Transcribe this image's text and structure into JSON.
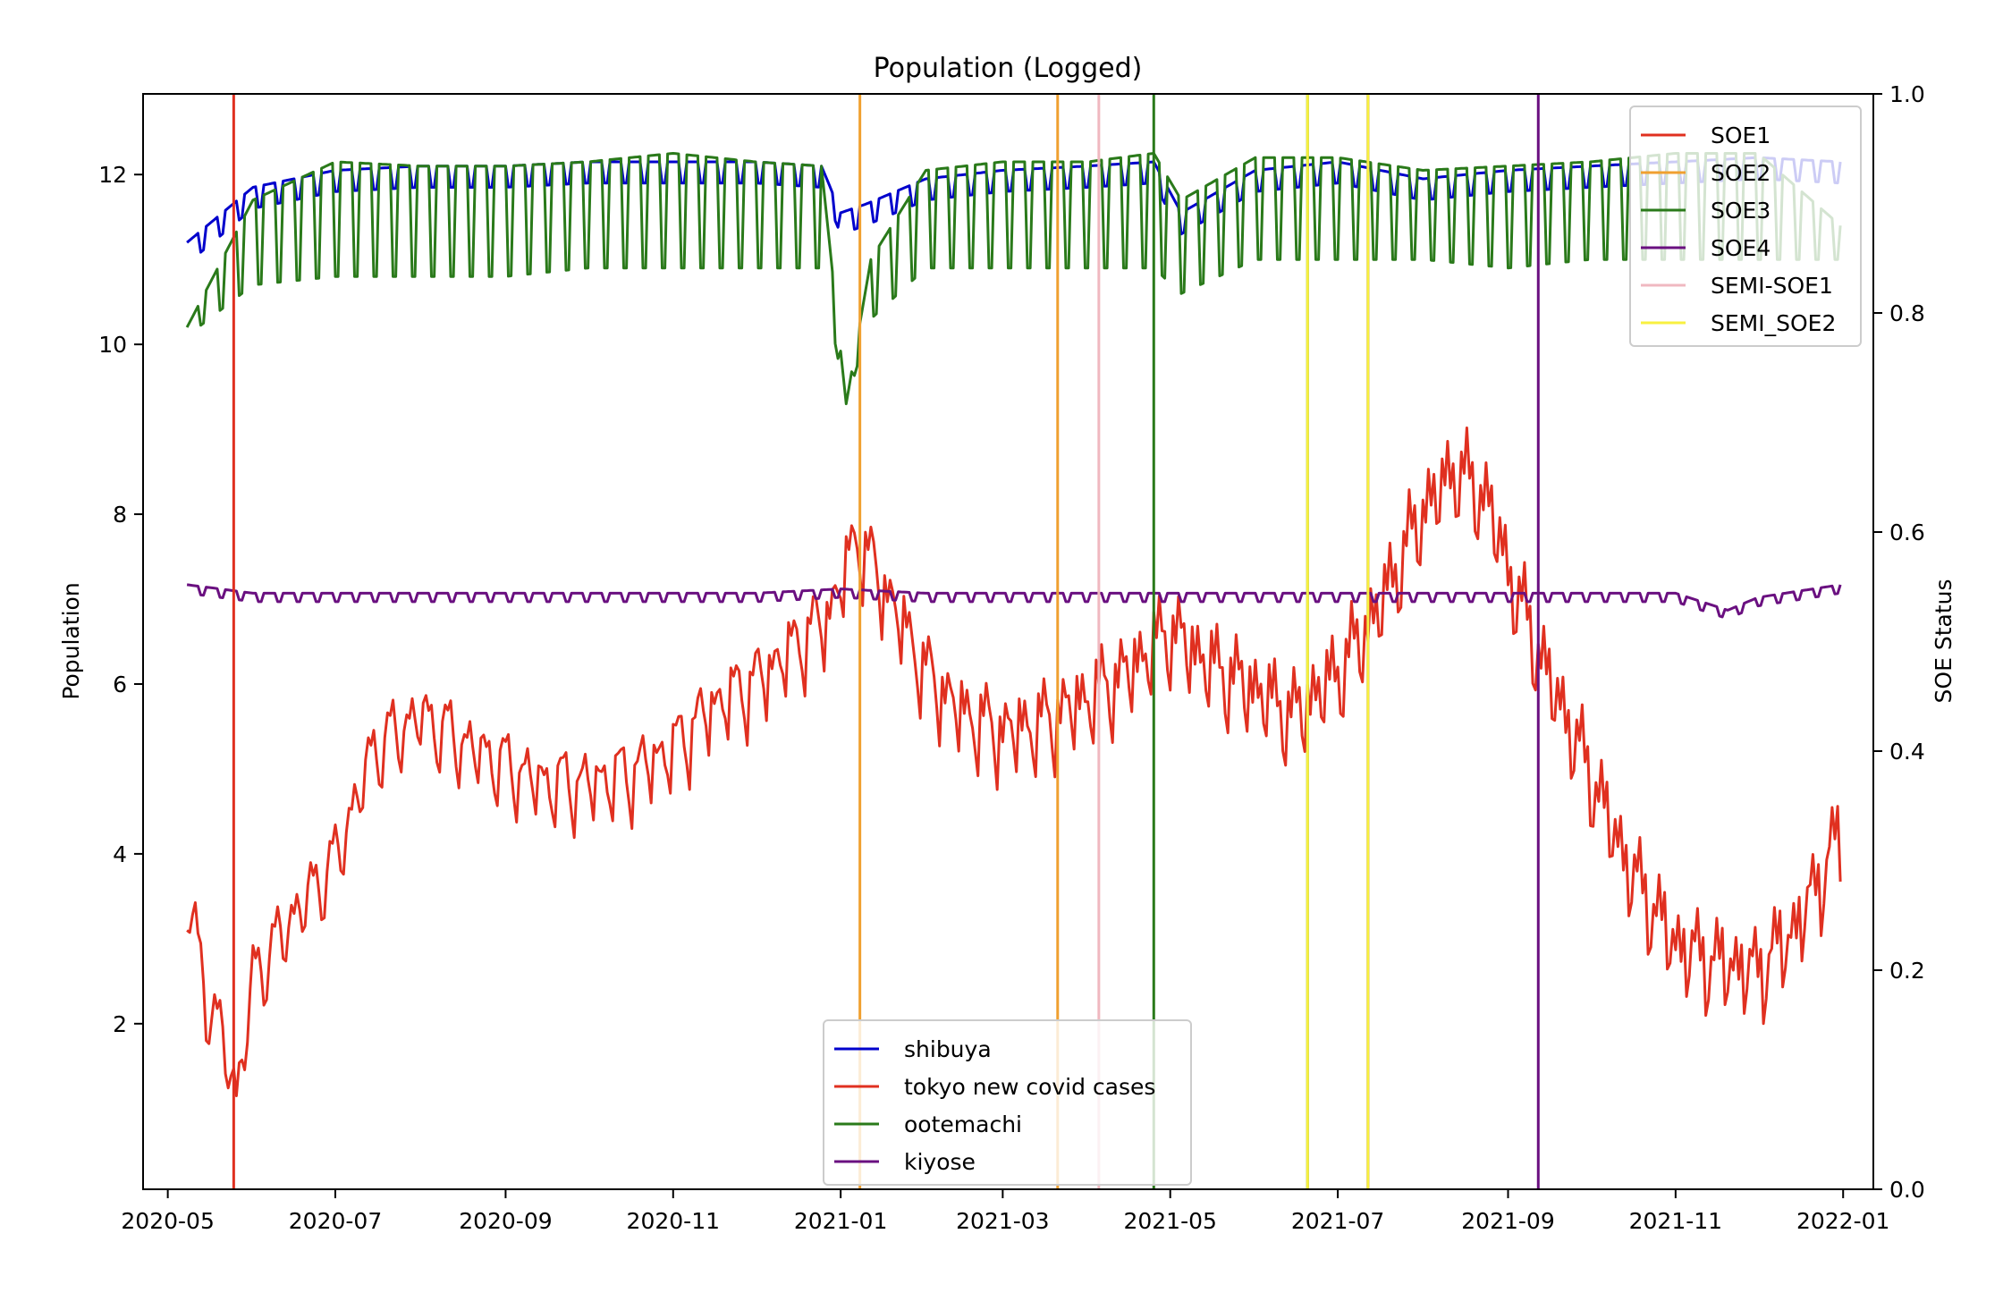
{
  "chart_data": {
    "type": "line",
    "title": "Population (Logged)",
    "ylabel": "Population",
    "y2label": "SOE Status",
    "xlim": [
      "2020-04-22",
      "2022-01-12"
    ],
    "ylim": [
      0.05,
      12.95
    ],
    "y2lim": [
      0.0,
      1.0
    ],
    "x_ticks": [
      "2020-05-01",
      "2020-07-01",
      "2020-09-01",
      "2020-11-01",
      "2021-01-01",
      "2021-03-01",
      "2021-05-01",
      "2021-07-01",
      "2021-09-01",
      "2021-11-01",
      "2022-01-01"
    ],
    "x_tick_labels": [
      "2020-05",
      "2020-07",
      "2020-09",
      "2020-11",
      "2021-01",
      "2021-03",
      "2021-05",
      "2021-07",
      "2021-09",
      "2021-11",
      "2022-01"
    ],
    "y_ticks": [
      2,
      4,
      6,
      8,
      10,
      12
    ],
    "y2_ticks": [
      "0.0",
      "0.2",
      "0.4",
      "0.6",
      "0.8",
      "1.0"
    ],
    "grid": false,
    "series": [
      {
        "name": "shibuya",
        "color": "#0000cc",
        "x": [
          "2020-05-08",
          "2020-06-01",
          "2020-07-01",
          "2020-08-01",
          "2020-09-01",
          "2020-10-01",
          "2020-11-01",
          "2020-12-01",
          "2020-12-25",
          "2021-01-01",
          "2021-01-10",
          "2021-02-01",
          "2021-03-01",
          "2021-04-01",
          "2021-04-25",
          "2021-05-05",
          "2021-06-01",
          "2021-07-01",
          "2021-08-01",
          "2021-09-01",
          "2021-10-01",
          "2021-11-01",
          "2021-12-01",
          "2021-12-31"
        ],
        "y": [
          11.15,
          11.8,
          12.0,
          12.05,
          12.05,
          12.1,
          12.1,
          12.1,
          12.05,
          11.5,
          11.6,
          11.9,
          12.0,
          12.05,
          12.1,
          11.5,
          12.0,
          12.1,
          11.9,
          12.0,
          12.05,
          12.1,
          12.15,
          12.1
        ]
      },
      {
        "name": "tokyo new covid cases",
        "color": "#e03020",
        "x": [
          "2020-05-08",
          "2020-05-15",
          "2020-05-22",
          "2020-05-26",
          "2020-06-01",
          "2020-06-15",
          "2020-07-01",
          "2020-07-15",
          "2020-08-01",
          "2020-08-15",
          "2020-09-01",
          "2020-09-15",
          "2020-10-01",
          "2020-10-15",
          "2020-11-01",
          "2020-11-15",
          "2020-12-01",
          "2020-12-15",
          "2020-12-28",
          "2021-01-07",
          "2021-01-20",
          "2021-02-01",
          "2021-02-15",
          "2021-03-01",
          "2021-03-15",
          "2021-04-01",
          "2021-04-15",
          "2021-05-01",
          "2021-05-15",
          "2021-06-01",
          "2021-06-15",
          "2021-07-01",
          "2021-07-15",
          "2021-08-01",
          "2021-08-13",
          "2021-08-25",
          "2021-09-01",
          "2021-09-15",
          "2021-10-01",
          "2021-10-15",
          "2021-11-01",
          "2021-11-15",
          "2021-12-01",
          "2021-12-15",
          "2021-12-31"
        ],
        "y": [
          3.6,
          2.4,
          1.8,
          1.2,
          2.6,
          3.3,
          4.0,
          5.3,
          5.7,
          5.4,
          5.1,
          4.9,
          4.9,
          5.0,
          5.3,
          5.8,
          6.1,
          6.5,
          6.9,
          7.8,
          7.0,
          6.2,
          5.7,
          5.5,
          5.6,
          5.9,
          6.2,
          6.7,
          6.3,
          6.0,
          5.7,
          6.2,
          6.9,
          8.1,
          8.6,
          8.2,
          7.4,
          6.2,
          5.0,
          3.9,
          3.0,
          2.8,
          2.7,
          3.2,
          4.3
        ]
      },
      {
        "name": "ootemachi",
        "color": "#2a7a1a",
        "x": [
          "2020-05-08",
          "2020-06-01",
          "2020-07-01",
          "2020-08-01",
          "2020-09-01",
          "2020-10-01",
          "2020-11-01",
          "2020-12-01",
          "2020-12-25",
          "2021-01-03",
          "2021-01-12",
          "2021-02-01",
          "2021-03-01",
          "2021-04-01",
          "2021-04-25",
          "2021-05-05",
          "2021-06-01",
          "2021-07-01",
          "2021-08-01",
          "2021-09-01",
          "2021-10-01",
          "2021-11-01",
          "2021-12-01",
          "2021-12-31"
        ],
        "y": [
          10.2,
          11.7,
          12.15,
          12.1,
          12.1,
          12.15,
          12.25,
          12.15,
          12.1,
          9.3,
          11.0,
          12.05,
          12.15,
          12.15,
          12.25,
          11.7,
          12.2,
          12.2,
          12.05,
          12.1,
          12.15,
          12.25,
          12.25,
          11.4
        ],
        "weekend_low": [
          10.1,
          10.7,
          10.8,
          10.8,
          10.8,
          10.9,
          10.9,
          10.9,
          10.9,
          9.3,
          10.3,
          10.9,
          10.9,
          10.9,
          10.9,
          10.6,
          11.0,
          11.0,
          11.0,
          10.9,
          11.0,
          11.0,
          11.0,
          11.0
        ]
      },
      {
        "name": "kiyose",
        "color": "#6a1080",
        "x": [
          "2020-05-08",
          "2020-06-01",
          "2020-07-01",
          "2020-08-01",
          "2020-09-01",
          "2020-10-01",
          "2020-11-01",
          "2020-12-01",
          "2021-01-01",
          "2021-02-01",
          "2021-03-01",
          "2021-04-01",
          "2021-05-01",
          "2021-06-01",
          "2021-07-01",
          "2021-08-01",
          "2021-09-01",
          "2021-10-01",
          "2021-11-01",
          "2021-11-20",
          "2021-12-01",
          "2021-12-31"
        ],
        "y": [
          7.15,
          7.05,
          7.05,
          7.05,
          7.05,
          7.05,
          7.05,
          7.05,
          7.1,
          7.05,
          7.05,
          7.05,
          7.05,
          7.05,
          7.05,
          7.05,
          7.05,
          7.05,
          7.05,
          6.85,
          7.0,
          7.15
        ]
      }
    ],
    "soe_lines": [
      {
        "name": "SOE1",
        "color": "#e03020",
        "x": "2020-05-25",
        "y2": [
          0.0,
          1.0
        ]
      },
      {
        "name": "SOE2",
        "color": "#f0a030",
        "x": [
          "2021-01-08",
          "2021-03-21"
        ],
        "y2": [
          0.0,
          1.0
        ]
      },
      {
        "name": "SOE3",
        "color": "#2a7a1a",
        "x": [
          "2021-04-25",
          "2021-06-20"
        ],
        "y2": [
          0.0,
          1.0
        ]
      },
      {
        "name": "SOE4",
        "color": "#6a1080",
        "x": [
          "2021-07-12",
          "2021-09-12"
        ],
        "y2": [
          0.0,
          1.0
        ]
      },
      {
        "name": "SEMI-SOE1",
        "color": "#f0b8c0",
        "x": "2021-04-05",
        "y2": [
          0.0,
          1.0
        ]
      },
      {
        "name": "SEMI_SOE2",
        "color": "#f8f040",
        "x": [
          "2021-06-20",
          "2021-07-12"
        ],
        "y2": [
          0.0,
          1.0
        ]
      }
    ],
    "legend_main": {
      "placement": "lower center",
      "entries": [
        "shibuya",
        "tokyo new covid cases",
        "ootemachi",
        "kiyose"
      ]
    },
    "legend_soe": {
      "placement": "upper right",
      "entries": [
        "SOE1",
        "SOE2",
        "SOE3",
        "SOE4",
        "SEMI-SOE1",
        "SEMI_SOE2"
      ]
    }
  }
}
